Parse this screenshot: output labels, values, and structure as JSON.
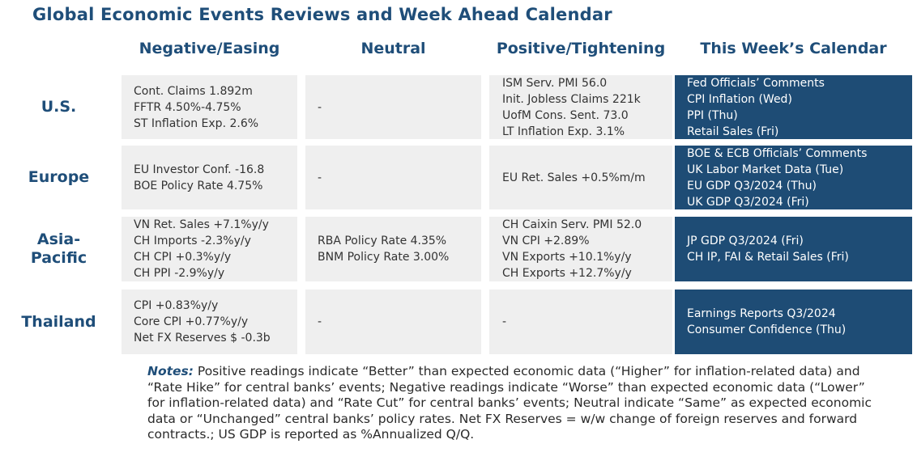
{
  "title": "Global Economic Events Reviews and Week Ahead Calendar",
  "columns": [
    "Negative/Easing",
    "Neutral",
    "Positive/Tightening",
    "This Week’s Calendar"
  ],
  "rows": [
    {
      "region": "U.S.",
      "negative": [
        "Cont. Claims 1.892m",
        "FFTR 4.50%-4.75%",
        "ST Inflation Exp. 2.6%"
      ],
      "neutral": [
        "-"
      ],
      "positive": [
        "ISM Serv. PMI 56.0",
        "Init. Jobless Claims 221k",
        "UofM Cons. Sent. 73.0",
        "LT Inflation Exp. 3.1%"
      ],
      "calendar": [
        "Fed Officials’ Comments",
        "CPI Inflation (Wed)",
        "PPI (Thu)",
        "Retail Sales (Fri)"
      ]
    },
    {
      "region": "Europe",
      "negative": [
        "EU Investor Conf. -16.8",
        "BOE Policy Rate 4.75%"
      ],
      "neutral": [
        "-"
      ],
      "positive": [
        "EU Ret. Sales +0.5%m/m"
      ],
      "calendar": [
        "BOE & ECB Officials’ Comments",
        "UK Labor Market Data (Tue)",
        "EU GDP Q3/2024 (Thu)",
        "UK GDP Q3/2024 (Fri)"
      ]
    },
    {
      "region": "Asia-\nPacific",
      "negative": [
        "VN Ret. Sales +7.1%y/y",
        "CH Imports -2.3%y/y",
        "CH CPI +0.3%y/y",
        "CH PPI -2.9%y/y"
      ],
      "neutral": [
        "RBA Policy Rate 4.35%",
        "BNM Policy Rate 3.00%"
      ],
      "positive": [
        "CH Caixin Serv. PMI 52.0",
        "VN CPI +2.89%",
        "VN Exports +10.1%y/y",
        "CH Exports +12.7%y/y"
      ],
      "calendar": [
        "JP GDP Q3/2024 (Fri)",
        "CH IP, FAI & Retail Sales (Fri)"
      ]
    },
    {
      "region": "Thailand",
      "negative": [
        "CPI +0.83%y/y",
        "Core CPI +0.77%y/y",
        "Net FX Reserves $ -0.3b"
      ],
      "neutral": [
        "-"
      ],
      "positive": [
        "-"
      ],
      "calendar": [
        "Earnings Reports Q3/2024",
        "Consumer Confidence (Thu)"
      ]
    }
  ],
  "notes": {
    "label": "Notes:",
    "text": " Positive readings indicate “Better” than expected economic data (“Higher” for inflation-related data) and “Rate Hike” for central banks’ events; Negative readings indicate “Worse” than expected economic data (“Lower” for inflation-related data) and “Rate Cut” for central banks’ events; Neutral indicate “Same” as expected economic data or “Unchanged” central banks’ policy rates. Net FX Reserves = w/w change of foreign reserves and forward contracts.; US GDP is reported as %Annualized Q/Q."
  }
}
